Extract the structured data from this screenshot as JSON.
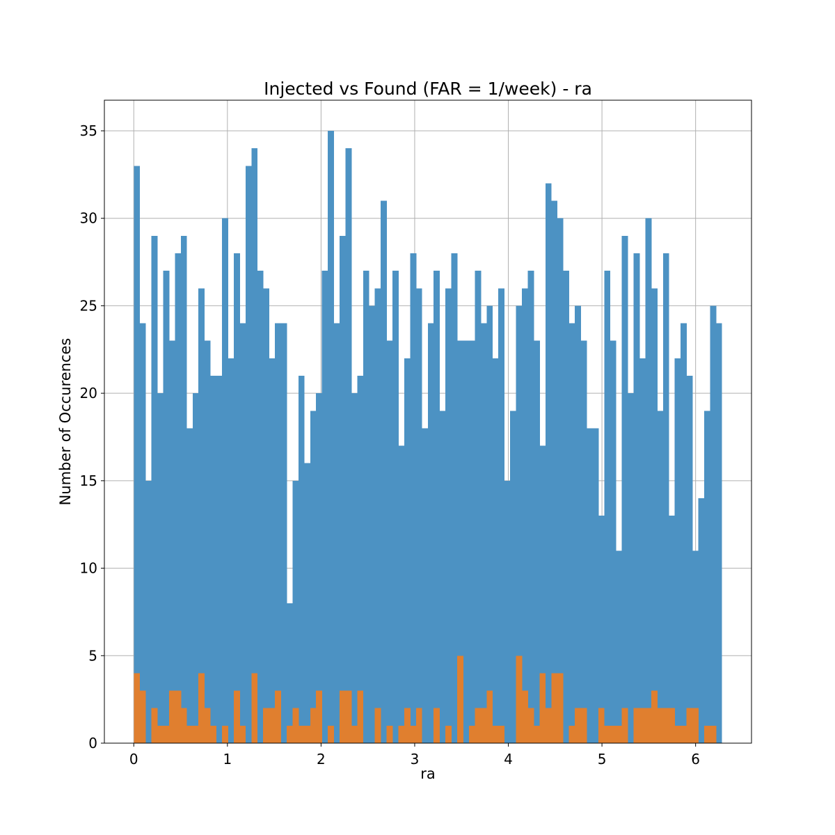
{
  "chart_data": {
    "type": "bar",
    "title": "Injected vs Found (FAR = 1/week) - ra",
    "xlabel": "ra",
    "ylabel": "Number of Occurences",
    "xlim": [
      -0.314,
      6.597
    ],
    "ylim": [
      0,
      36.75
    ],
    "xticks": [
      0,
      1,
      2,
      3,
      4,
      5,
      6
    ],
    "yticks": [
      0,
      5,
      10,
      15,
      20,
      25,
      30,
      35
    ],
    "grid": true,
    "legend": "none",
    "bin_start": 0,
    "bin_width": 0.0628,
    "series": [
      {
        "color": "#4c92c3",
        "values": [
          33,
          24,
          15,
          29,
          20,
          27,
          23,
          28,
          29,
          18,
          20,
          26,
          23,
          21,
          21,
          30,
          22,
          28,
          24,
          33,
          34,
          27,
          26,
          22,
          24,
          24,
          8,
          15,
          21,
          16,
          19,
          20,
          27,
          35,
          24,
          29,
          34,
          20,
          21,
          27,
          25,
          26,
          31,
          23,
          27,
          17,
          22,
          28,
          26,
          18,
          24,
          27,
          19,
          26,
          28,
          23,
          23,
          23,
          27,
          24,
          25,
          22,
          26,
          15,
          19,
          25,
          26,
          27,
          23,
          17,
          32,
          31,
          30,
          27,
          24,
          25,
          23,
          18,
          18,
          13,
          27,
          23,
          11,
          29,
          20,
          28,
          22,
          30,
          26,
          19,
          28,
          13,
          22,
          24,
          21,
          11,
          14,
          19,
          25,
          24
        ]
      },
      {
        "color": "#e07f2f",
        "values": [
          4,
          3,
          0,
          2,
          1,
          1,
          3,
          3,
          2,
          1,
          1,
          4,
          2,
          1,
          0,
          1,
          0,
          3,
          1,
          0,
          4,
          0,
          2,
          2,
          3,
          0,
          1,
          2,
          1,
          1,
          2,
          3,
          0,
          1,
          0,
          3,
          3,
          1,
          3,
          0,
          0,
          2,
          0,
          1,
          0,
          1,
          2,
          1,
          2,
          0,
          0,
          2,
          0,
          1,
          0,
          5,
          0,
          1,
          2,
          2,
          3,
          1,
          1,
          0,
          0,
          5,
          3,
          2,
          1,
          4,
          2,
          4,
          4,
          0,
          1,
          2,
          2,
          0,
          0,
          2,
          1,
          1,
          1,
          2,
          0,
          2,
          2,
          2,
          3,
          2,
          2,
          2,
          1,
          1,
          2,
          2,
          0,
          1,
          1,
          0
        ]
      }
    ]
  }
}
